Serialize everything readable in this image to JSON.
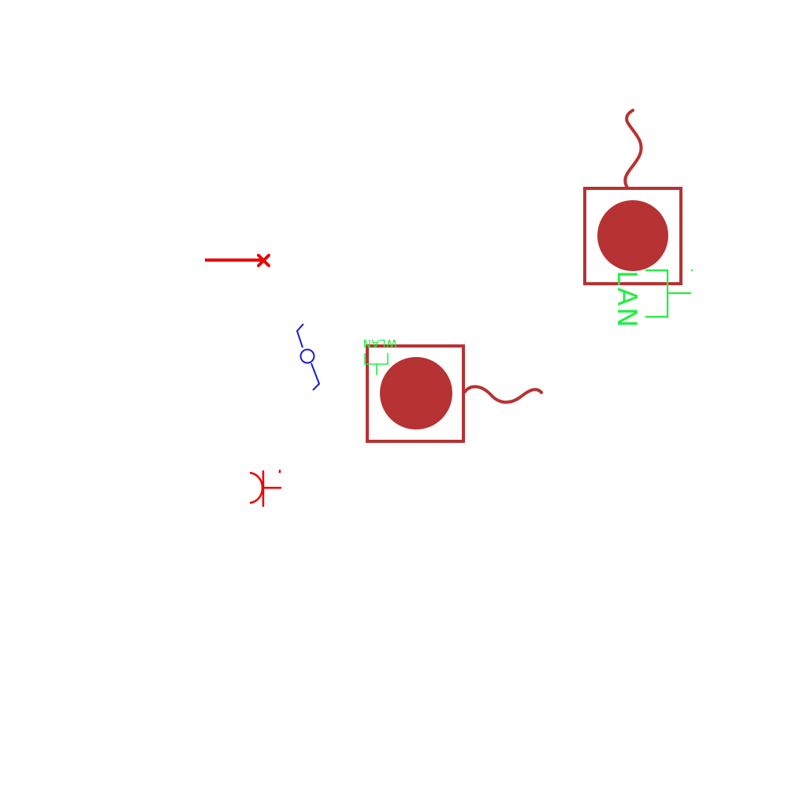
{
  "colors": {
    "device": "#b73232",
    "connector": "#ee0000",
    "link": "#1a1acc",
    "label": "#22ee44",
    "background": "#ffffff"
  },
  "devices": [
    {
      "id": "device-top-right",
      "icon": "network-device-icon",
      "antenna": "wireless-antenna",
      "label": "LAN"
    },
    {
      "id": "device-center",
      "icon": "network-device-icon",
      "antenna": "wireless-antenna",
      "label": "WLAN"
    }
  ],
  "symbols": [
    {
      "id": "cable-end",
      "icon": "cable-terminator-icon"
    },
    {
      "id": "link-switch",
      "icon": "link-switch-icon"
    },
    {
      "id": "socket",
      "icon": "socket-connector-icon"
    }
  ]
}
